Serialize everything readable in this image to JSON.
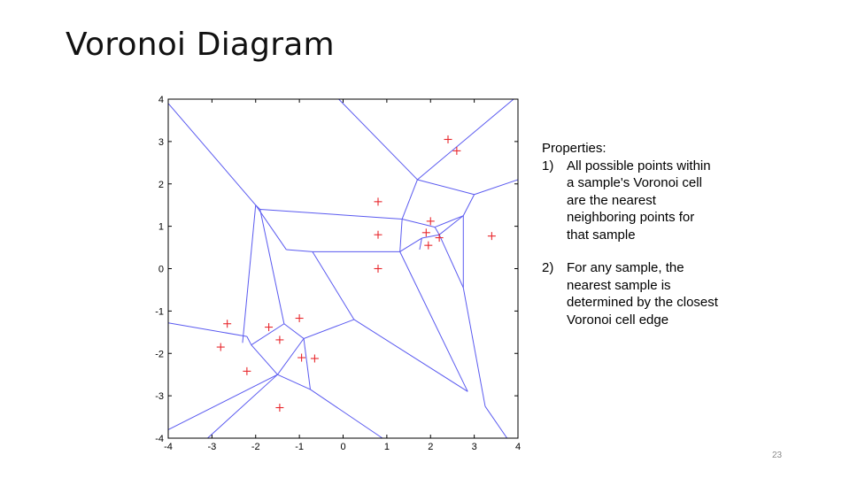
{
  "slide": {
    "title": "Voronoi Diagram",
    "page_number": "23"
  },
  "properties": {
    "heading": "Properties:",
    "items": [
      {
        "num": "1)",
        "text": "All possible points within a sample's Voronoi cell are the nearest neighboring points for that sample"
      },
      {
        "num": "2)",
        "text": "For any sample, the nearest sample is determined by the closest Voronoi cell edge"
      }
    ]
  },
  "chart_data": {
    "type": "scatter",
    "xlim": [
      -4,
      4
    ],
    "ylim": [
      -4,
      4
    ],
    "x_ticks": [
      "-4",
      "-3",
      "-2",
      "-1",
      "0",
      "1",
      "2",
      "3",
      "4"
    ],
    "y_ticks": [
      "4",
      "3",
      "2",
      "1",
      "0",
      "-1",
      "-2",
      "-3",
      "-4"
    ],
    "colors": {
      "edges": "#5a5af0",
      "samples": "#e8282d",
      "axes": "#000000"
    },
    "samples": [
      [
        2.4,
        3.05
      ],
      [
        2.6,
        2.78
      ],
      [
        0.8,
        1.58
      ],
      [
        2.0,
        1.12
      ],
      [
        1.9,
        0.85
      ],
      [
        2.2,
        0.73
      ],
      [
        3.4,
        0.77
      ],
      [
        0.8,
        0.8
      ],
      [
        1.95,
        0.55
      ],
      [
        0.8,
        0.0
      ],
      [
        -2.65,
        -1.3
      ],
      [
        -1.7,
        -1.38
      ],
      [
        -1.0,
        -1.17
      ],
      [
        -1.45,
        -1.68
      ],
      [
        -2.8,
        -1.85
      ],
      [
        -0.95,
        -2.1
      ],
      [
        -0.65,
        -2.12
      ],
      [
        -2.2,
        -2.42
      ],
      [
        -1.45,
        -3.28
      ]
    ],
    "edges": [
      [
        [
          -4,
          3.9
        ],
        [
          -2.0,
          1.5
        ]
      ],
      [
        [
          -4,
          -1.28
        ],
        [
          -2.2,
          -1.6
        ]
      ],
      [
        [
          -4,
          -3.8
        ],
        [
          -1.5,
          -2.5
        ]
      ],
      [
        [
          -2.0,
          1.5
        ],
        [
          -1.9,
          1.4
        ]
      ],
      [
        [
          -1.9,
          1.4
        ],
        [
          1.35,
          1.17
        ]
      ],
      [
        [
          -2.0,
          1.5
        ],
        [
          -1.3,
          0.45
        ]
      ],
      [
        [
          -1.3,
          0.45
        ],
        [
          -0.7,
          0.4
        ]
      ],
      [
        [
          -0.7,
          0.4
        ],
        [
          1.3,
          0.4
        ]
      ],
      [
        [
          -0.7,
          0.4
        ],
        [
          0.25,
          -1.2
        ]
      ],
      [
        [
          -2.0,
          1.5
        ],
        [
          -2.3,
          -1.75
        ]
      ],
      [
        [
          -1.9,
          1.4
        ],
        [
          -1.35,
          -1.3
        ]
      ],
      [
        [
          -1.35,
          -1.3
        ],
        [
          -2.1,
          -1.8
        ]
      ],
      [
        [
          -2.2,
          -1.6
        ],
        [
          -2.1,
          -1.8
        ]
      ],
      [
        [
          -2.1,
          -1.8
        ],
        [
          -1.5,
          -2.5
        ]
      ],
      [
        [
          -1.5,
          -2.5
        ],
        [
          -0.75,
          -2.85
        ]
      ],
      [
        [
          -1.5,
          -2.5
        ],
        [
          -0.9,
          -1.65
        ]
      ],
      [
        [
          -1.35,
          -1.3
        ],
        [
          -0.9,
          -1.65
        ]
      ],
      [
        [
          -0.9,
          -1.65
        ],
        [
          0.25,
          -1.2
        ]
      ],
      [
        [
          -0.9,
          -1.65
        ],
        [
          -0.75,
          -2.85
        ]
      ],
      [
        [
          -1.5,
          -2.5
        ],
        [
          -3.1,
          -4
        ]
      ],
      [
        [
          -0.75,
          -2.85
        ],
        [
          0.9,
          -4
        ]
      ],
      [
        [
          0.25,
          -1.2
        ],
        [
          2.85,
          -2.9
        ]
      ],
      [
        [
          1.3,
          0.4
        ],
        [
          2.85,
          -2.9
        ]
      ],
      [
        [
          1.35,
          1.17
        ],
        [
          1.3,
          0.4
        ]
      ],
      [
        [
          1.35,
          1.17
        ],
        [
          1.7,
          2.1
        ]
      ],
      [
        [
          1.7,
          2.1
        ],
        [
          -0.1,
          4
        ]
      ],
      [
        [
          1.7,
          2.1
        ],
        [
          3.0,
          1.75
        ]
      ],
      [
        [
          1.7,
          2.1
        ],
        [
          3.9,
          4
        ]
      ],
      [
        [
          3.0,
          1.75
        ],
        [
          4,
          2.1
        ]
      ],
      [
        [
          3.0,
          1.75
        ],
        [
          2.75,
          1.25
        ]
      ],
      [
        [
          1.35,
          1.17
        ],
        [
          2.1,
          0.98
        ]
      ],
      [
        [
          2.1,
          0.98
        ],
        [
          2.75,
          1.25
        ]
      ],
      [
        [
          2.1,
          0.98
        ],
        [
          2.2,
          0.8
        ]
      ],
      [
        [
          1.3,
          0.4
        ],
        [
          1.8,
          0.72
        ]
      ],
      [
        [
          1.8,
          0.72
        ],
        [
          2.2,
          0.8
        ]
      ],
      [
        [
          2.2,
          0.8
        ],
        [
          2.75,
          1.25
        ]
      ],
      [
        [
          1.8,
          0.72
        ],
        [
          1.75,
          0.45
        ]
      ],
      [
        [
          2.2,
          0.8
        ],
        [
          2.75,
          -0.45
        ]
      ],
      [
        [
          2.75,
          1.25
        ],
        [
          2.75,
          -0.45
        ]
      ],
      [
        [
          2.75,
          -0.45
        ],
        [
          3.25,
          -3.25
        ]
      ],
      [
        [
          3.25,
          -3.25
        ],
        [
          3.75,
          -4
        ]
      ]
    ]
  }
}
